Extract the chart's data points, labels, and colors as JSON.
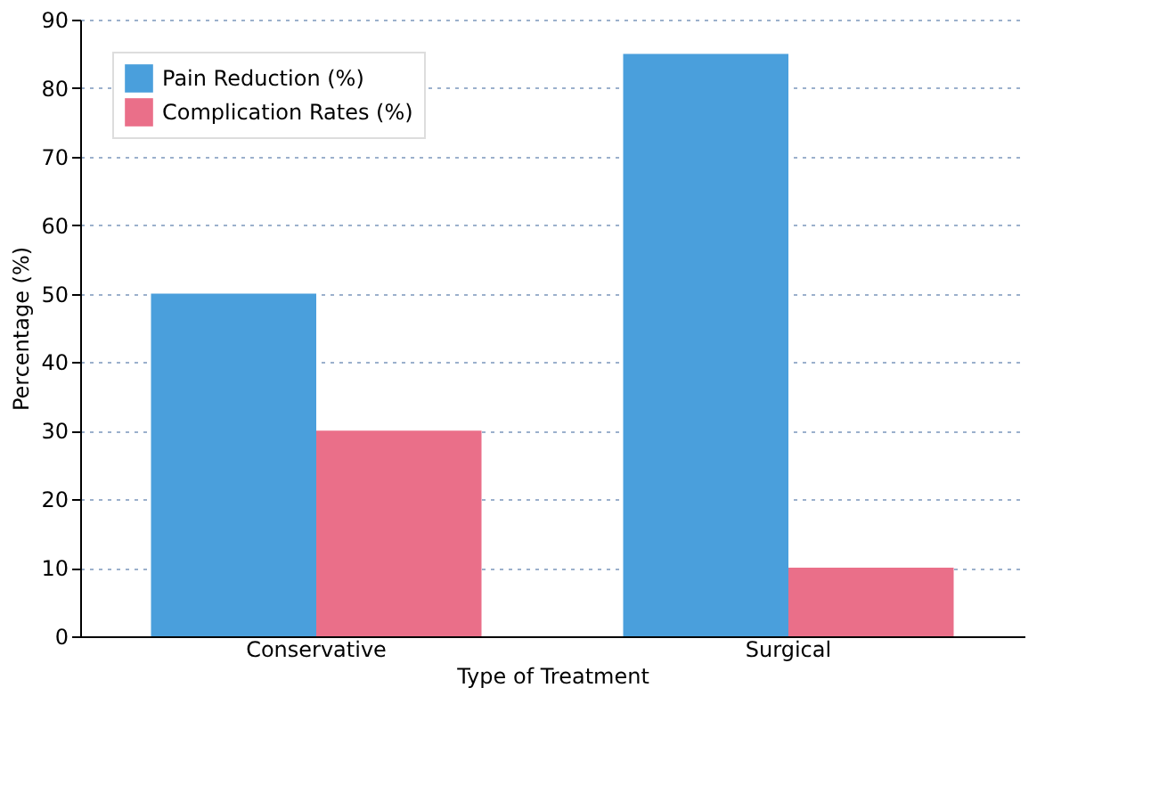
{
  "chart_data": {
    "type": "bar",
    "xlabel": "Type of Treatment",
    "ylabel": "Percentage (%)",
    "categories": [
      "Conservative",
      "Surgical"
    ],
    "series": [
      {
        "name": "Pain Reduction (%)",
        "color": "#4a9fdc",
        "values": [
          50,
          85
        ]
      },
      {
        "name": "Complication Rates (%)",
        "color": "#ea6f89",
        "values": [
          30,
          10
        ]
      }
    ],
    "ylim": [
      0,
      90
    ],
    "yticks": [
      0,
      10,
      20,
      30,
      40,
      50,
      60,
      70,
      80,
      90
    ],
    "grid": "y",
    "legend": "top left"
  }
}
